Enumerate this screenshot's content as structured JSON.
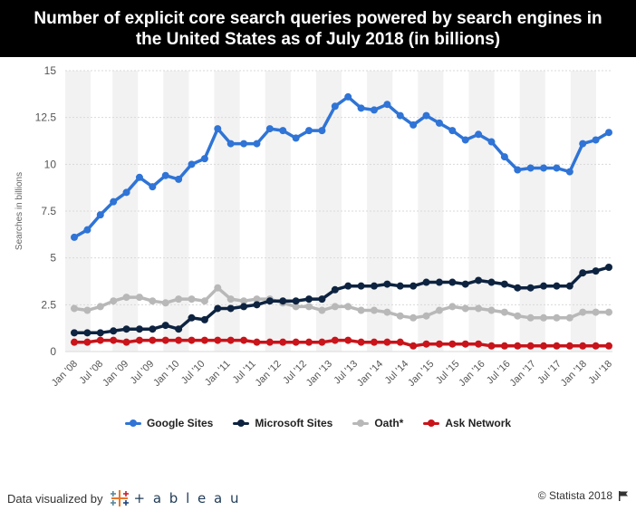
{
  "header": {
    "title": "Number of explicit core search queries powered by search engines in the United States as of July 2018 (in billions)"
  },
  "footer": {
    "visualized_label": "Data visualized by",
    "tableau_word": "+ a b l e a u",
    "copyright": "© Statista 2018",
    "tableau_logo_icon": "tableau-cross-logo",
    "flag_icon": "flag-icon"
  },
  "colors": {
    "google": "#2f74d6",
    "microsoft": "#0d2340",
    "oath": "#b8b8b8",
    "ask": "#c8141a",
    "band": "#f2f2f2",
    "grid": "#d9d9d9"
  },
  "chart_data": {
    "type": "line",
    "title": "Number of explicit core search queries powered by search engines in the United States as of July 2018 (in billions)",
    "xlabel": "",
    "ylabel": "Searches in billions",
    "ylim": [
      0,
      15
    ],
    "yticks": [
      "0",
      "2.5",
      "5",
      "7.5",
      "10",
      "12.5",
      "15"
    ],
    "ytick_values": [
      0,
      2.5,
      5,
      7.5,
      10,
      12.5,
      15
    ],
    "x_tick_labels": [
      "Jan '08",
      "Jul '08",
      "Jan '09",
      "Jul '09",
      "Jan '10",
      "Jul '10",
      "Jan '11",
      "Jul '11",
      "Jan '12",
      "Jul '12",
      "Jan '13",
      "Jul '13",
      "Jan '14",
      "Jul '14",
      "Jan '15",
      "Jul '15",
      "Jan '16",
      "Jul '16",
      "Jan '17",
      "Jul '17",
      "Jan '18",
      "Jul '18"
    ],
    "grid": true,
    "legend_position": "bottom",
    "series": [
      {
        "name": "Google Sites",
        "color_key": "google",
        "values": [
          6.1,
          6.5,
          7.3,
          8.0,
          8.5,
          9.3,
          8.8,
          9.4,
          9.2,
          10.0,
          10.3,
          11.9,
          11.1,
          11.1,
          11.1,
          11.9,
          11.8,
          11.4,
          11.8,
          11.8,
          13.1,
          13.6,
          13.0,
          12.9,
          13.2,
          12.6,
          12.1,
          12.6,
          12.2,
          11.8,
          11.3,
          11.6,
          11.2,
          10.4,
          9.7,
          9.8,
          9.8,
          9.8,
          9.6,
          11.1,
          11.3,
          11.7
        ]
      },
      {
        "name": "Microsoft Sites",
        "color_key": "microsoft",
        "values": [
          1.0,
          1.0,
          1.0,
          1.1,
          1.2,
          1.2,
          1.2,
          1.4,
          1.2,
          1.8,
          1.7,
          2.3,
          2.3,
          2.4,
          2.5,
          2.7,
          2.7,
          2.7,
          2.8,
          2.8,
          3.3,
          3.5,
          3.5,
          3.5,
          3.6,
          3.5,
          3.5,
          3.7,
          3.7,
          3.7,
          3.6,
          3.8,
          3.7,
          3.6,
          3.4,
          3.4,
          3.5,
          3.5,
          3.5,
          4.2,
          4.3,
          4.5
        ]
      },
      {
        "name": "Oath*",
        "color_key": "oath",
        "values": [
          2.3,
          2.2,
          2.4,
          2.7,
          2.9,
          2.9,
          2.7,
          2.6,
          2.8,
          2.8,
          2.7,
          3.4,
          2.8,
          2.7,
          2.8,
          2.8,
          2.6,
          2.4,
          2.4,
          2.2,
          2.4,
          2.4,
          2.2,
          2.2,
          2.1,
          1.9,
          1.8,
          1.9,
          2.2,
          2.4,
          2.3,
          2.3,
          2.2,
          2.1,
          1.9,
          1.8,
          1.8,
          1.8,
          1.8,
          2.1,
          2.1,
          2.1
        ]
      },
      {
        "name": "Ask Network",
        "color_key": "ask",
        "values": [
          0.5,
          0.5,
          0.6,
          0.6,
          0.5,
          0.6,
          0.6,
          0.6,
          0.6,
          0.6,
          0.6,
          0.6,
          0.6,
          0.6,
          0.5,
          0.5,
          0.5,
          0.5,
          0.5,
          0.5,
          0.6,
          0.6,
          0.5,
          0.5,
          0.5,
          0.5,
          0.3,
          0.4,
          0.4,
          0.4,
          0.4,
          0.4,
          0.3,
          0.3,
          0.3,
          0.3,
          0.3,
          0.3,
          0.3,
          0.3,
          0.3,
          0.3
        ]
      }
    ]
  }
}
